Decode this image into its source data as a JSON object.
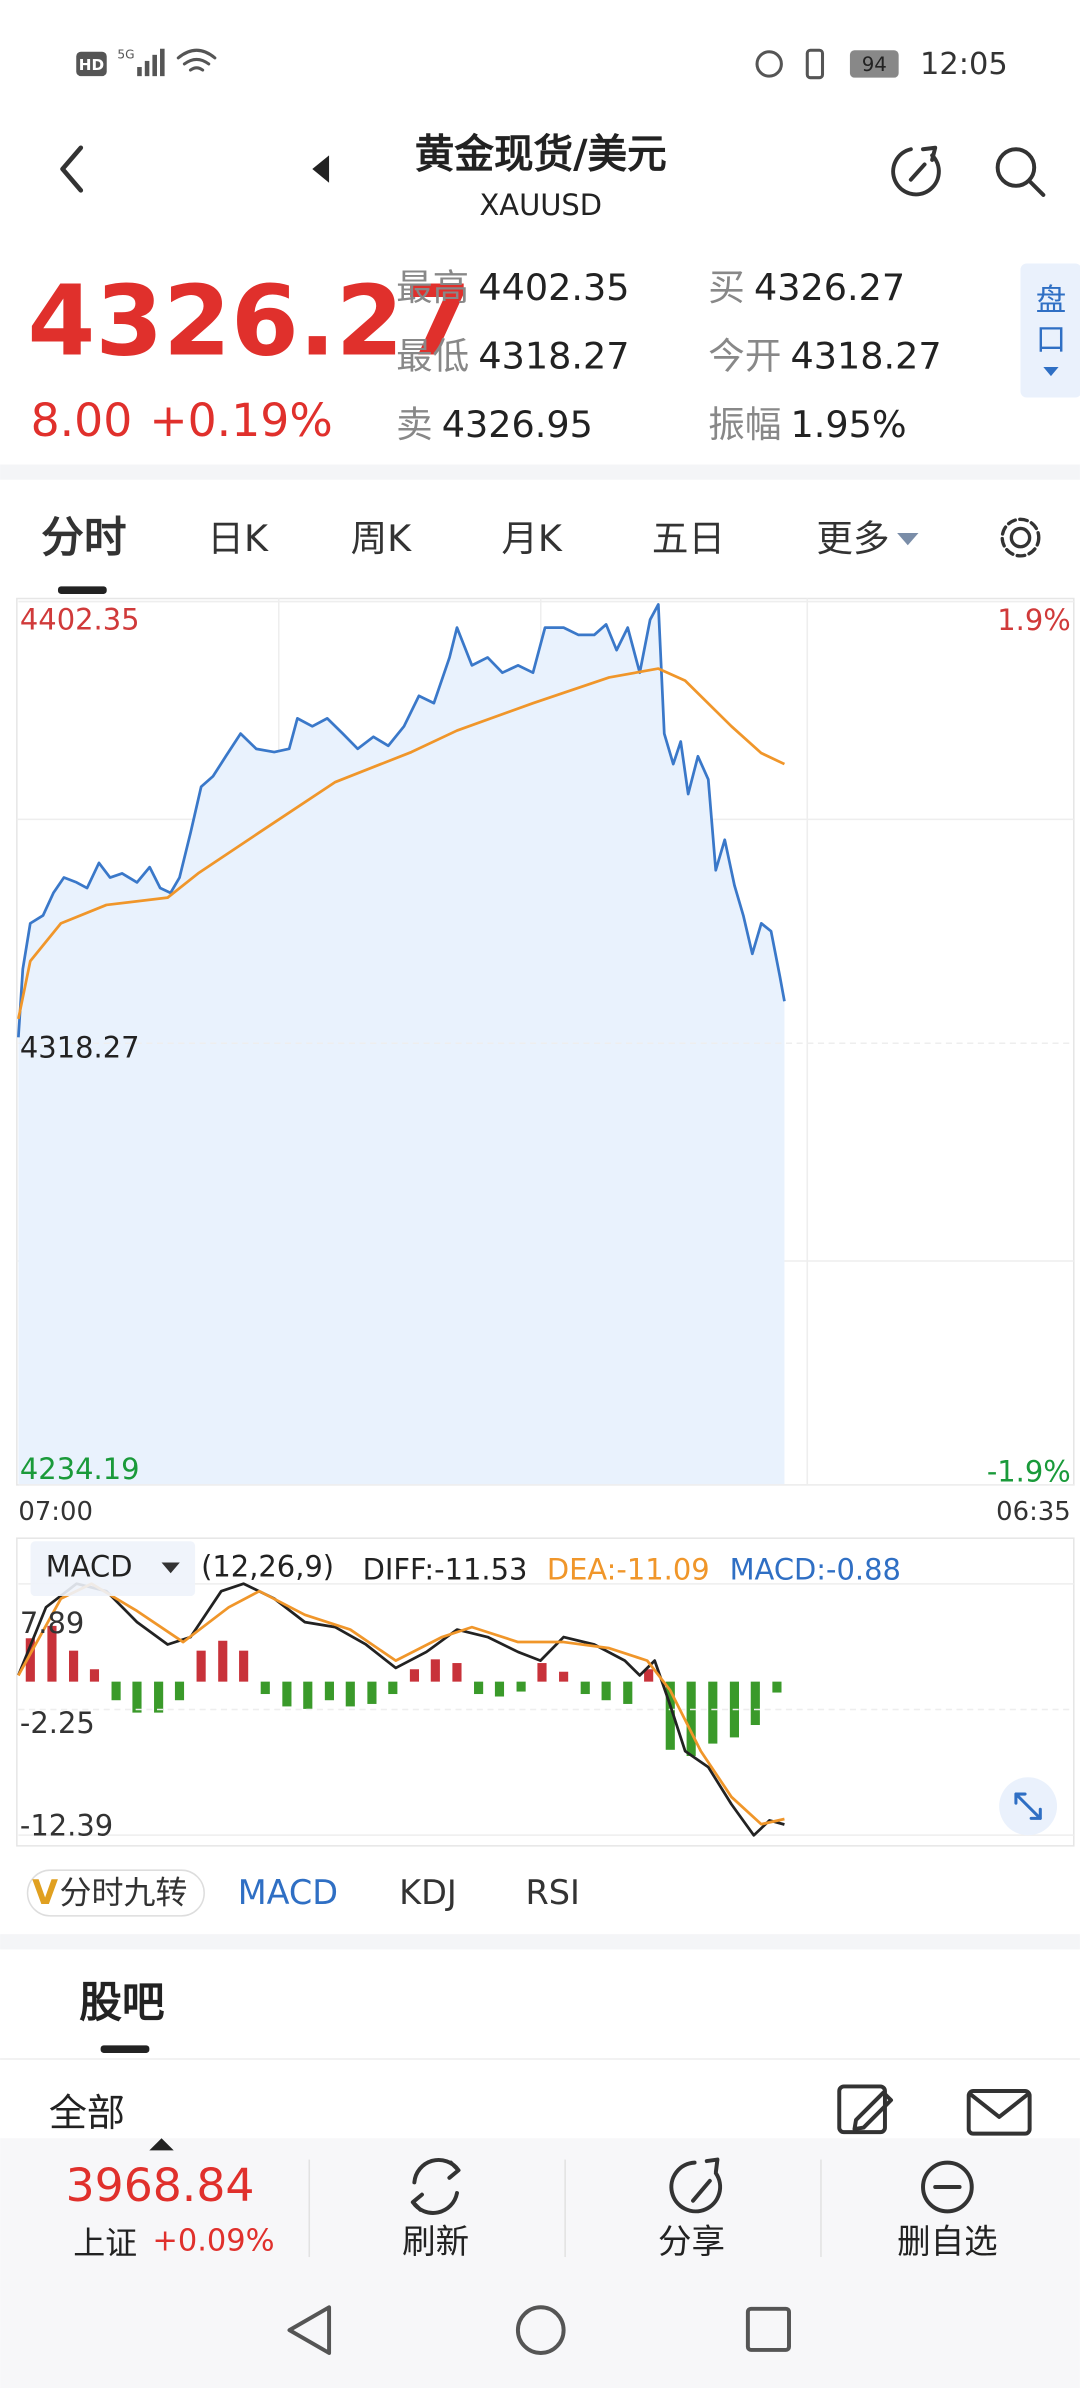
{
  "status_bar": {
    "hd": "HD",
    "network": "5G",
    "battery": "94",
    "time": "12:05"
  },
  "header": {
    "title": "黄金现货/美元",
    "subtitle": "XAUUSD"
  },
  "quote": {
    "price": "4326.27",
    "change": "8.00",
    "change_pct": "+0.19%",
    "stats": [
      {
        "label": "最高",
        "value": "4402.35"
      },
      {
        "label": "买",
        "value": "4326.27"
      },
      {
        "label": "最低",
        "value": "4318.27"
      },
      {
        "label": "今开",
        "value": "4318.27"
      },
      {
        "label": "卖",
        "value": "4326.95"
      },
      {
        "label": "振幅",
        "value": "1.95%"
      }
    ],
    "panel_button": "盘口"
  },
  "tabs": [
    "分时",
    "日K",
    "周K",
    "月K",
    "五日",
    "更多"
  ],
  "chart_data": [
    {
      "type": "line",
      "xlim": [
        0,
        1415
      ],
      "xticks": [
        {
          "value": 0,
          "label": "07:00"
        },
        {
          "value": 1415,
          "label": "06:35"
        }
      ],
      "ylim": [
        4234.19,
        4402.35
      ],
      "yticks": [
        4402.35,
        4318.27,
        4234.19
      ],
      "y2lim": [
        -1.95,
        1.95
      ],
      "y2ticks": [
        {
          "value": 1.9,
          "label": "1.9%"
        },
        {
          "value": -1.9,
          "label": "-1.9%"
        }
      ],
      "grid": true,
      "series": [
        {
          "color": "#3a78c9",
          "area_color": "#e9f2fd",
          "x": [
            0,
            6,
            16,
            33,
            47,
            61,
            78,
            92,
            108,
            123,
            139,
            159,
            176,
            190,
            204,
            216,
            231,
            245,
            261,
            278,
            298,
            319,
            343,
            363,
            374,
            394,
            414,
            435,
            455,
            476,
            496,
            517,
            537,
            557,
            578,
            588,
            608,
            629,
            649,
            670,
            690,
            706,
            731,
            751,
            772,
            788,
            802,
            817,
            833,
            847,
            858,
            866,
            878,
            888,
            898,
            911,
            925,
            935,
            947,
            960,
            972,
            984,
            996,
            1009,
            1021,
            1027
          ],
          "values": [
            4319.4,
            4332.4,
            4341.1,
            4342.6,
            4346.9,
            4349.8,
            4348.9,
            4347.8,
            4352.6,
            4349.8,
            4350.6,
            4348.9,
            4351.8,
            4347.8,
            4346.9,
            4349.8,
            4358.4,
            4367.1,
            4369.1,
            4372.9,
            4377.2,
            4374.3,
            4373.7,
            4374.3,
            4380.1,
            4378.6,
            4380.1,
            4377.2,
            4374.3,
            4376.6,
            4374.9,
            4378.6,
            4384.4,
            4383.0,
            4391.7,
            4397.4,
            4390.2,
            4391.7,
            4388.8,
            4390.2,
            4388.8,
            4397.4,
            4397.4,
            4396.0,
            4396.0,
            4398.0,
            4393.1,
            4397.4,
            4388.8,
            4398.9,
            4401.8,
            4377.2,
            4371.4,
            4375.7,
            4365.7,
            4372.9,
            4368.5,
            4351.2,
            4357.0,
            4348.3,
            4342.6,
            4335.3,
            4341.1,
            4339.6,
            4331.0,
            4326.27
          ]
        },
        {
          "color": "#f0962a",
          "x": [
            0,
            16,
            57,
            118,
            200,
            241,
            323,
            425,
            527,
            588,
            690,
            792,
            858,
            894,
            956,
            996,
            1027
          ],
          "values": [
            4322.9,
            4333.9,
            4341.1,
            4344.6,
            4346.0,
            4350.6,
            4358.4,
            4368.0,
            4373.7,
            4377.8,
            4383.0,
            4387.9,
            4389.6,
            4387.3,
            4378.6,
            4373.5,
            4371.4
          ]
        }
      ]
    },
    {
      "type": "line",
      "title": "MACD",
      "params": "(12,26,9)",
      "xlim": [
        0,
        1415
      ],
      "ylim": [
        -12.39,
        7.89
      ],
      "yticks": [
        7.89,
        -2.25,
        -12.39
      ],
      "series": [
        {
          "name": "DIFF:-11.53",
          "color": "#222222",
          "kind": "line",
          "x": [
            0,
            37,
            78,
            118,
            159,
            200,
            231,
            272,
            302,
            343,
            384,
            425,
            466,
            506,
            547,
            588,
            629,
            670,
            700,
            731,
            772,
            813,
            833,
            853,
            874,
            894,
            925,
            956,
            986,
            1007,
            1027
          ],
          "values": [
            0.52,
            6.0,
            7.9,
            7.3,
            4.8,
            3.0,
            3.6,
            7.3,
            7.9,
            6.7,
            4.8,
            4.4,
            3.0,
            1.1,
            2.4,
            4.2,
            3.6,
            2.4,
            1.7,
            3.6,
            3.0,
            1.7,
            0.5,
            1.7,
            -1.9,
            -5.6,
            -6.9,
            -9.9,
            -12.4,
            -11.2,
            -11.53
          ]
        },
        {
          "name": "DEA:-11.09",
          "color": "#f0962a",
          "kind": "line",
          "x": [
            0,
            57,
            98,
            159,
            221,
            282,
            323,
            384,
            445,
            506,
            568,
            608,
            670,
            731,
            792,
            843,
            874,
            915,
            956,
            996,
            1027
          ],
          "values": [
            0.5,
            6.7,
            7.9,
            5.7,
            3.2,
            6.0,
            7.3,
            5.4,
            4.2,
            1.7,
            3.6,
            4.4,
            3.2,
            3.2,
            2.7,
            1.7,
            -0.7,
            -5.6,
            -9.3,
            -11.5,
            -11.09
          ]
        },
        {
          "name": "MACD:-0.88",
          "color": "#2f6fc4",
          "kind": "bar",
          "up_color": "#c8323a",
          "down_color": "#3a9a2a",
          "x": [
            16,
            45,
            74,
            102,
            131,
            159,
            188,
            216,
            245,
            274,
            302,
            331,
            360,
            388,
            417,
            445,
            474,
            502,
            531,
            559,
            588,
            617,
            645,
            674,
            702,
            731,
            760,
            788,
            817,
            845,
            874,
            902,
            931,
            960,
            988,
            1017
          ],
          "values": [
            3.5,
            4.5,
            2.5,
            1.0,
            -1.5,
            -2.5,
            -2.5,
            -1.5,
            2.5,
            3.3,
            2.5,
            -1.0,
            -2.0,
            -2.2,
            -1.5,
            -2.0,
            -1.8,
            -1.0,
            1.0,
            1.8,
            1.5,
            -1.0,
            -1.2,
            -0.8,
            1.5,
            0.8,
            -1.0,
            -1.5,
            -1.8,
            1.0,
            -5.5,
            -6.0,
            -5.0,
            -4.5,
            -3.5,
            -0.88
          ]
        }
      ]
    }
  ],
  "indicator_tabs": [
    "分时九转",
    "MACD",
    "KDJ",
    "RSI"
  ],
  "forum": {
    "title": "股吧",
    "filter": "全部"
  },
  "bottom_bar": {
    "index_value": "3968.84",
    "index_name": "上证",
    "index_change": "+0.09%",
    "actions": [
      "刷新",
      "分享",
      "删自选"
    ]
  }
}
